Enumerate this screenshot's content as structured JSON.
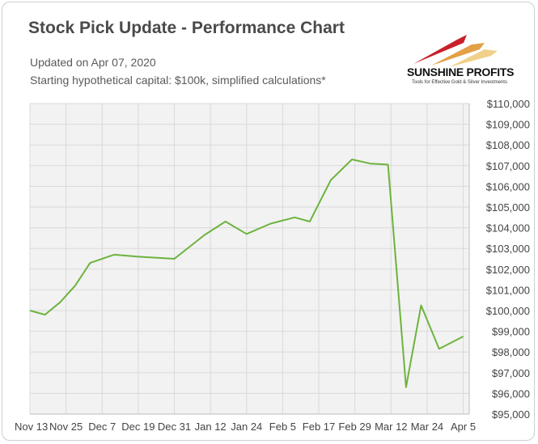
{
  "header": {
    "title": "Stock Pick Update - Performance Chart",
    "subtitle_date": "Updated on Apr 07, 2020",
    "subtitle_capital": "Starting hypothetical capital: $100k, simplified calculations*"
  },
  "logo": {
    "name": "SUNSHINE PROFITS",
    "tagline": "Tools for Effective Gold & Silver Investments"
  },
  "colors": {
    "line": "#6db33f",
    "plot_background": "#f2f2f2",
    "grid": "#d9d9d9",
    "text": "#444444"
  },
  "chart_data": {
    "type": "line",
    "title": "Stock Pick Update - Performance Chart",
    "xlabel": "",
    "ylabel": "",
    "ylim": [
      95000,
      110000
    ],
    "y_ticks": [
      "$95,000",
      "$96,000",
      "$97,000",
      "$98,000",
      "$99,000",
      "$100,000",
      "$101,000",
      "$102,000",
      "$103,000",
      "$104,000",
      "$105,000",
      "$106,000",
      "$107,000",
      "$108,000",
      "$109,000",
      "$110,000"
    ],
    "x_tick_labels": [
      "Nov 13",
      "Nov 25",
      "Dec 7",
      "Dec 19",
      "Dec 31",
      "Jan 12",
      "Jan 24",
      "Feb 5",
      "Feb 17",
      "Feb 29",
      "Mar 12",
      "Mar 24",
      "Apr 5"
    ],
    "grid": true,
    "series": [
      {
        "x": [
          "2019-11-13",
          "2019-11-18",
          "2019-11-23",
          "2019-11-28",
          "2019-12-03",
          "2019-12-11",
          "2019-12-19",
          "2019-12-31",
          "2020-01-10",
          "2020-01-17",
          "2020-01-24",
          "2020-02-01",
          "2020-02-09",
          "2020-02-14",
          "2020-02-21",
          "2020-02-28",
          "2020-03-05",
          "2020-03-11",
          "2020-03-17",
          "2020-03-22",
          "2020-03-28",
          "2020-04-05"
        ],
        "values": [
          100000,
          99800,
          100400,
          101200,
          102300,
          102700,
          102600,
          102500,
          103650,
          104300,
          103700,
          104200,
          104500,
          104300,
          106300,
          107300,
          107100,
          107050,
          96300,
          100250,
          98150,
          98750
        ]
      }
    ]
  }
}
